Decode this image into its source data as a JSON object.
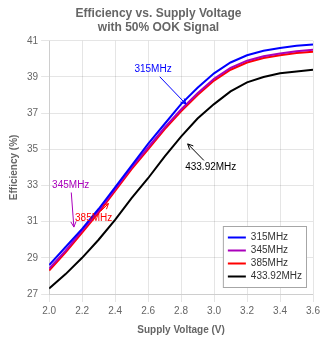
{
  "chart_data": {
    "type": "line",
    "title": "Efficiency vs. Supply Voltage\nwith 50% OOK Signal",
    "x_label": "Supply Voltage (V)",
    "y_label": "Efficiency (%)",
    "x": [
      2.0,
      2.1,
      2.2,
      2.3,
      2.4,
      2.5,
      2.6,
      2.7,
      2.8,
      2.9,
      3.0,
      3.1,
      3.2,
      3.3,
      3.4,
      3.5,
      3.6
    ],
    "series": [
      {
        "name": "315MHz",
        "color": "#0000FF",
        "values": [
          28.6,
          29.6,
          30.6,
          31.7,
          32.9,
          34.1,
          35.3,
          36.4,
          37.5,
          38.4,
          39.2,
          39.8,
          40.2,
          40.45,
          40.6,
          40.72,
          40.8
        ]
      },
      {
        "name": "345MHz",
        "color": "#AA00BB",
        "values": [
          28.4,
          29.4,
          30.5,
          31.6,
          32.8,
          34.0,
          35.1,
          36.2,
          37.2,
          38.1,
          38.9,
          39.5,
          39.9,
          40.15,
          40.3,
          40.42,
          40.5
        ]
      },
      {
        "name": "385MHz",
        "color": "#FF0000",
        "values": [
          28.3,
          29.3,
          30.4,
          31.5,
          32.7,
          33.9,
          35.0,
          36.1,
          37.1,
          38.0,
          38.8,
          39.4,
          39.8,
          40.05,
          40.2,
          40.32,
          40.4
        ]
      },
      {
        "name": "433.92MHz",
        "color": "#000000",
        "values": [
          27.3,
          28.1,
          29.0,
          30.0,
          31.1,
          32.3,
          33.4,
          34.6,
          35.7,
          36.7,
          37.5,
          38.2,
          38.7,
          39.0,
          39.2,
          39.3,
          39.4
        ]
      }
    ],
    "xlim": [
      2.0,
      3.6
    ],
    "ylim": [
      27,
      41
    ],
    "xticks": [
      {
        "value": 2.0,
        "label": "2.0"
      },
      2.2,
      2.4,
      2.6,
      2.8,
      {
        "value": 3.0,
        "label": "3.0"
      },
      3.2,
      3.4,
      3.6
    ],
    "yticks": [
      27,
      29,
      31,
      33,
      35,
      37,
      39,
      41
    ],
    "annotations": [
      {
        "text": "315MHz",
        "color": "#0000FF",
        "xy": [
          2.83,
          37.5
        ],
        "xytext": [
          2.63,
          39.4
        ]
      },
      {
        "text": "345MHz",
        "color": "#AA00BB",
        "xy": [
          2.15,
          30.7
        ],
        "xytext": [
          2.03,
          33.0
        ]
      },
      {
        "text": "385MHz",
        "color": "#FF0000",
        "xy": [
          2.36,
          32.0
        ],
        "xytext": [
          2.27,
          31.2
        ]
      },
      {
        "text": "433.92MHz",
        "color": "#000000",
        "xy": [
          2.84,
          35.3
        ],
        "xytext": [
          2.98,
          34.0
        ]
      }
    ],
    "grid": true,
    "legend": "lower right"
  }
}
